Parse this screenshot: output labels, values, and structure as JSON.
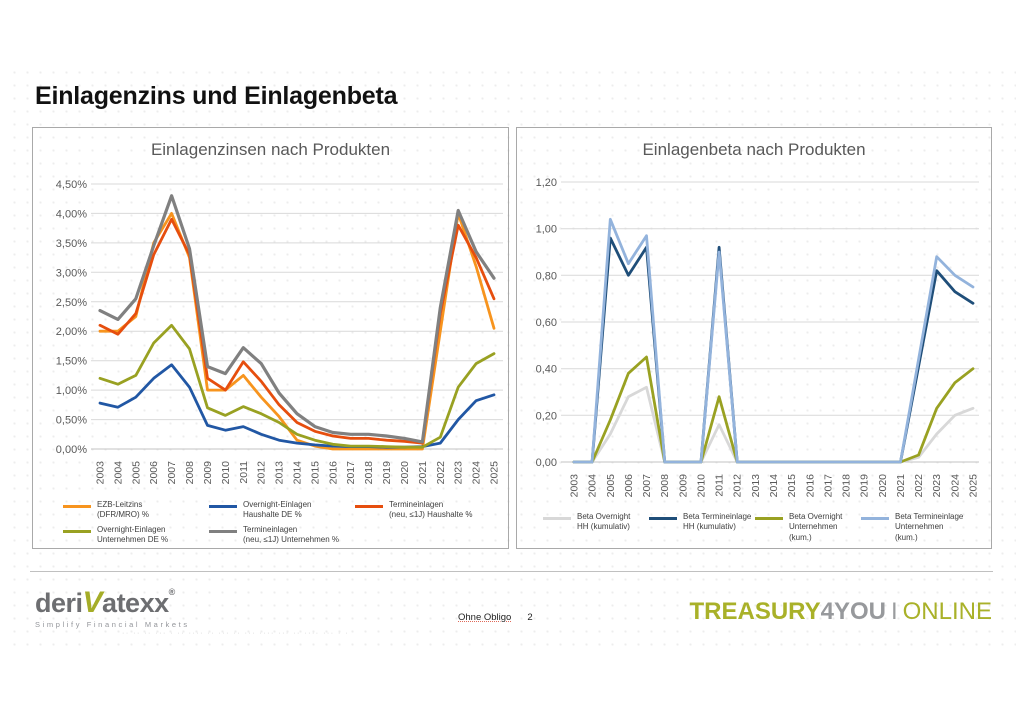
{
  "title": "Einlagenzins und Einlagenbeta",
  "footer": {
    "logo_prefix": "deri",
    "logo_v": "V",
    "logo_suffix": "atexx",
    "logo_reg": "®",
    "logo_tagline": "Simplify Financial Markets",
    "illegible_text": "·· ·· ·· ··· · ·· ···· ·· ··· ·· ··· ···· ··· ·· ···· ··· · ·",
    "disclaimer": "Ohne Obligo",
    "page_number": "2",
    "brand_part1": "TREASURY",
    "brand_part2": "4YOU",
    "brand_sep": "I",
    "brand_part3": "ONLINE"
  },
  "chart_data": [
    {
      "type": "line",
      "title": "Einlagenzinsen nach Produkten",
      "xlabel": "",
      "ylabel": "",
      "grid": true,
      "legend_position": "bottom",
      "ylim": [
        0,
        4.5
      ],
      "yticks": [
        {
          "v": 0.0,
          "label": "0,00%"
        },
        {
          "v": 0.5,
          "label": "0,50%"
        },
        {
          "v": 1.0,
          "label": "1,00%"
        },
        {
          "v": 1.5,
          "label": "1,50%"
        },
        {
          "v": 2.0,
          "label": "2,00%"
        },
        {
          "v": 2.5,
          "label": "2,50%"
        },
        {
          "v": 3.0,
          "label": "3,00%"
        },
        {
          "v": 3.5,
          "label": "3,50%"
        },
        {
          "v": 4.0,
          "label": "4,00%"
        },
        {
          "v": 4.5,
          "label": "4,50%"
        }
      ],
      "x": [
        "2003",
        "2004",
        "2005",
        "2006",
        "2007",
        "2008",
        "2009",
        "2010",
        "2011",
        "2012",
        "2013",
        "2014",
        "2015",
        "2016",
        "2017",
        "2018",
        "2019",
        "2020",
        "2021",
        "2022",
        "2023",
        "2024",
        "2025"
      ],
      "series": [
        {
          "name": "EZB-Leitzins\n(DFR/MRO) %",
          "color": "#F7941E",
          "values": [
            2.0,
            2.0,
            2.25,
            3.5,
            4.0,
            3.25,
            1.0,
            1.0,
            1.25,
            0.88,
            0.55,
            0.15,
            0.05,
            0.0,
            0.0,
            0.0,
            0.0,
            0.0,
            0.0,
            2.0,
            4.0,
            3.1,
            2.05
          ]
        },
        {
          "name": "Overnight-Einlagen\nHaushalte DE %",
          "color": "#2157A4",
          "values": [
            0.78,
            0.71,
            0.88,
            1.2,
            1.43,
            1.05,
            0.4,
            0.32,
            0.38,
            0.25,
            0.15,
            0.1,
            0.07,
            0.05,
            0.04,
            0.04,
            0.03,
            0.03,
            0.04,
            0.1,
            0.5,
            0.82,
            0.92
          ]
        },
        {
          "name": "Termineinlagen\n(neu, ≤1J) Haushalte %",
          "color": "#E64E0E",
          "values": [
            2.1,
            1.95,
            2.3,
            3.3,
            3.9,
            3.3,
            1.2,
            1.0,
            1.48,
            1.15,
            0.75,
            0.45,
            0.3,
            0.22,
            0.18,
            0.18,
            0.15,
            0.13,
            0.1,
            2.3,
            3.8,
            3.25,
            2.55
          ]
        },
        {
          "name": "Overnight-Einlagen\nUnternehmen DE %",
          "color": "#99A122",
          "values": [
            1.2,
            1.1,
            1.25,
            1.8,
            2.1,
            1.7,
            0.7,
            0.57,
            0.72,
            0.6,
            0.45,
            0.25,
            0.15,
            0.08,
            0.05,
            0.05,
            0.04,
            0.03,
            0.03,
            0.2,
            1.05,
            1.45,
            1.62
          ]
        },
        {
          "name": "Termineinlagen\n(neu, ≤1J) Unternehmen %",
          "color": "#808080",
          "width": 3.2,
          "values": [
            2.35,
            2.2,
            2.55,
            3.45,
            4.3,
            3.4,
            1.4,
            1.28,
            1.72,
            1.45,
            0.95,
            0.6,
            0.38,
            0.28,
            0.25,
            0.25,
            0.22,
            0.18,
            0.12,
            2.4,
            4.05,
            3.35,
            2.9
          ]
        }
      ]
    },
    {
      "type": "line",
      "title": "Einlagenbeta nach Produkten",
      "xlabel": "",
      "ylabel": "",
      "grid": true,
      "legend_position": "bottom",
      "ylim": [
        0,
        1.2
      ],
      "yticks": [
        {
          "v": 0.0,
          "label": "0,00"
        },
        {
          "v": 0.2,
          "label": "0,20"
        },
        {
          "v": 0.4,
          "label": "0,40"
        },
        {
          "v": 0.6,
          "label": "0,60"
        },
        {
          "v": 0.8,
          "label": "0,80"
        },
        {
          "v": 1.0,
          "label": "1,00"
        },
        {
          "v": 1.2,
          "label": "1,20"
        }
      ],
      "x": [
        "2003",
        "2004",
        "2005",
        "2006",
        "2007",
        "2008",
        "2009",
        "2010",
        "2011",
        "2012",
        "2013",
        "2014",
        "2015",
        "2016",
        "2017",
        "2018",
        "2019",
        "2020",
        "2021",
        "2022",
        "2023",
        "2024",
        "2025"
      ],
      "series": [
        {
          "name": "Beta Overnight\nHH (kumulativ)",
          "color": "#D8D8D8",
          "values": [
            0.0,
            0.0,
            0.12,
            0.28,
            0.32,
            0.0,
            0.0,
            0.0,
            0.16,
            0.0,
            0.0,
            0.0,
            0.0,
            0.0,
            0.0,
            0.0,
            0.0,
            0.0,
            0.0,
            0.02,
            0.12,
            0.2,
            0.23
          ]
        },
        {
          "name": "Beta Termineinlage\nHH (kumulativ)",
          "color": "#1F4E79",
          "values": [
            0.0,
            0.0,
            0.96,
            0.8,
            0.92,
            0.0,
            0.0,
            0.0,
            0.92,
            0.0,
            0.0,
            0.0,
            0.0,
            0.0,
            0.0,
            0.0,
            0.0,
            0.0,
            0.0,
            0.41,
            0.82,
            0.73,
            0.68
          ]
        },
        {
          "name": "Beta Overnight\nUnternehmen (kum.)",
          "color": "#99A122",
          "values": [
            0.0,
            0.0,
            0.18,
            0.38,
            0.45,
            0.0,
            0.0,
            0.0,
            0.28,
            0.0,
            0.0,
            0.0,
            0.0,
            0.0,
            0.0,
            0.0,
            0.0,
            0.0,
            0.0,
            0.03,
            0.23,
            0.34,
            0.4
          ]
        },
        {
          "name": "Beta Termineinlage\nUnternehmen (kum.)",
          "color": "#93B3DC",
          "values": [
            0.0,
            0.0,
            1.04,
            0.85,
            0.97,
            0.0,
            0.0,
            0.0,
            0.9,
            0.0,
            0.0,
            0.0,
            0.0,
            0.0,
            0.0,
            0.0,
            0.0,
            0.0,
            0.0,
            0.44,
            0.88,
            0.8,
            0.75
          ]
        }
      ]
    }
  ]
}
